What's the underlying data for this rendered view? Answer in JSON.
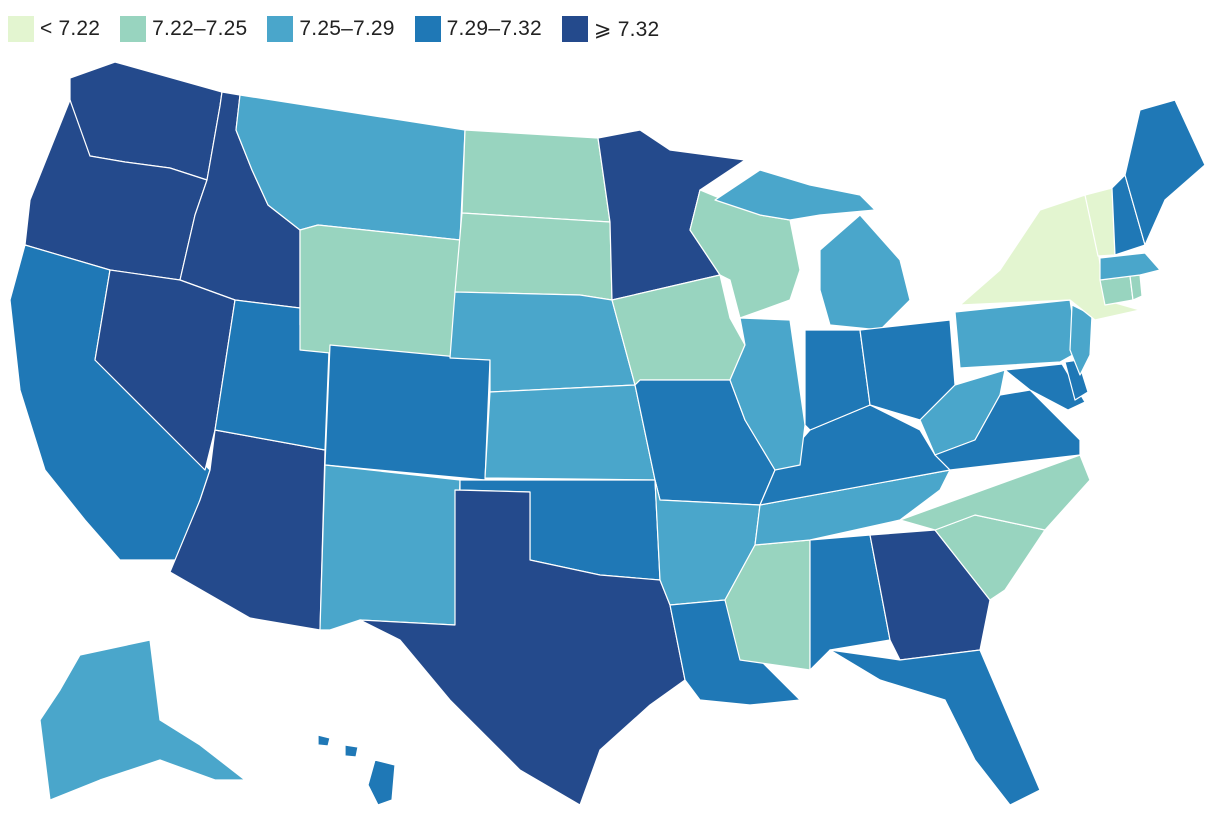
{
  "legend": [
    {
      "label": "< 7.22",
      "color": "#e3f5d0"
    },
    {
      "label": "7.22–7.25",
      "color": "#98d4bf"
    },
    {
      "label": "7.25–7.29",
      "color": "#4aa6cb"
    },
    {
      "label": "7.29–7.32",
      "color": "#1f78b6"
    },
    {
      "label": "⩾ 7.32",
      "color": "#244a8c"
    }
  ],
  "states": {
    "WA": 4,
    "OR": 4,
    "ID": 4,
    "NV": 4,
    "AZ": 4,
    "TX": 4,
    "MN": 4,
    "GA": 4,
    "CA": 3,
    "UT": 3,
    "CO": 3,
    "OK": 3,
    "MO": 3,
    "LA": 3,
    "AL": 3,
    "FL": 3,
    "IN": 3,
    "OH": 3,
    "KY": 3,
    "VA": 3,
    "MD": 3,
    "DE": 3,
    "ME": 3,
    "NH": 3,
    "HI": 3,
    "MT": 2,
    "NM": 2,
    "NE": 2,
    "KS": 2,
    "AR": 2,
    "TN": 2,
    "IL": 2,
    "MI": 2,
    "WV": 2,
    "PA": 2,
    "NJ": 2,
    "MA": 2,
    "AK": 2,
    "ND": 1,
    "SD": 1,
    "WY": 1,
    "WI": 1,
    "IA": 1,
    "MS": 1,
    "NC": 1,
    "SC": 1,
    "CT": 1,
    "RI": 1,
    "DC": 1,
    "NY": 0,
    "VT": 0
  }
}
